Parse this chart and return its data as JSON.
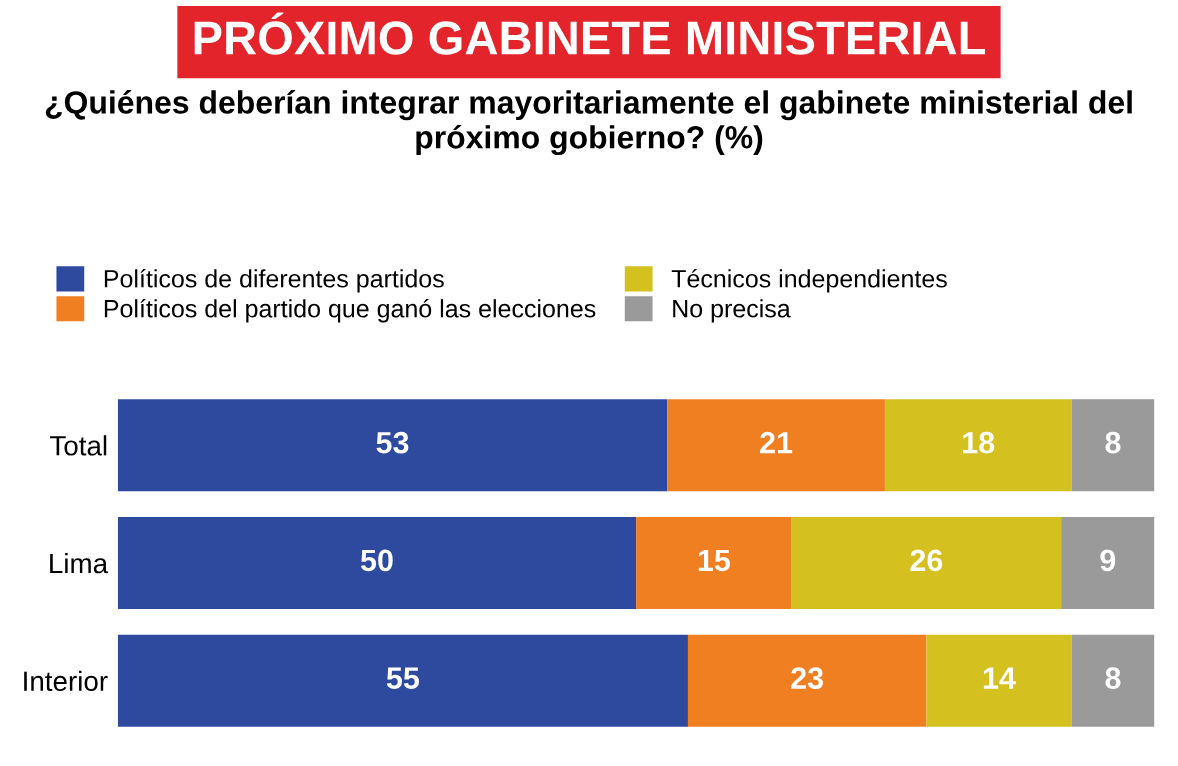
{
  "chart_data": {
    "type": "bar",
    "orientation": "horizontal",
    "stacked": true,
    "title": "PRÓXIMO GABINETE MINISTERIAL",
    "subtitle": "¿Quiénes deberían integrar mayoritariamente el gabinete ministerial del próximo gobierno? (%)",
    "categories": [
      "Total",
      "Lima",
      "Interior"
    ],
    "series": [
      {
        "name": "Políticos de diferentes partidos",
        "color": "#2e4a9e",
        "values": [
          53,
          50,
          55
        ]
      },
      {
        "name": "Políticos del partido que ganó las elecciones",
        "color": "#f07f22",
        "values": [
          21,
          15,
          23
        ]
      },
      {
        "name": "Técnicos independientes",
        "color": "#d4c11f",
        "values": [
          18,
          26,
          14
        ]
      },
      {
        "name": "No precisa",
        "color": "#9a9a9a",
        "values": [
          8,
          9,
          8
        ]
      }
    ],
    "xlim": [
      0,
      100
    ],
    "data_labels": true,
    "legend": "top",
    "grid": false,
    "tick_labels": "y"
  }
}
